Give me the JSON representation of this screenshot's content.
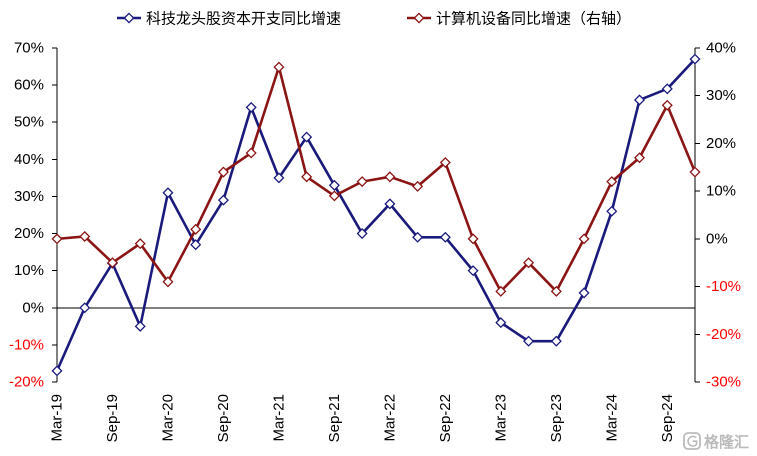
{
  "watermark": {
    "text": "格隆汇"
  },
  "chart_data": {
    "type": "line",
    "title": "",
    "legend": "top",
    "grid": false,
    "categories": [
      "Mar-19",
      "",
      "Sep-19",
      "",
      "Mar-20",
      "",
      "Sep-20",
      "",
      "Mar-21",
      "",
      "Sep-21",
      "",
      "Mar-22",
      "",
      "Sep-22",
      "",
      "Mar-23",
      "",
      "Sep-23",
      "",
      "Mar-24",
      "",
      "Sep-24",
      ""
    ],
    "y_left": {
      "range": [
        -20,
        70
      ],
      "tick_labels": [
        "-20%",
        "-10%",
        "0%",
        "10%",
        "20%",
        "30%",
        "40%",
        "50%",
        "60%",
        "70%"
      ]
    },
    "y_right": {
      "range": [
        -30,
        40
      ],
      "tick_labels": [
        "-30%",
        "-20%",
        "-10%",
        "0%",
        "10%",
        "20%",
        "30%",
        "40%"
      ]
    },
    "negative_tick_color": "#ff0000",
    "series": [
      {
        "name": "科技龙头股资本开支同比增速",
        "axis": "left",
        "marker": "diamond",
        "color": "#1a1a7c",
        "values": [
          -17,
          0,
          12,
          -5,
          31,
          17,
          29,
          54,
          35,
          46,
          33,
          20,
          28,
          19,
          19,
          10,
          -4,
          -9,
          -9,
          4,
          26,
          56,
          59,
          67
        ]
      },
      {
        "name": "计算机设备同比增速（右轴）",
        "axis": "right",
        "marker": "diamond",
        "color": "#8b1414",
        "values": [
          0,
          0.5,
          -5,
          -1,
          -9,
          2,
          14,
          18,
          36,
          13,
          9,
          12,
          13,
          11,
          16,
          0,
          -11,
          -5,
          -11,
          0,
          12,
          17,
          28,
          14
        ]
      }
    ]
  }
}
